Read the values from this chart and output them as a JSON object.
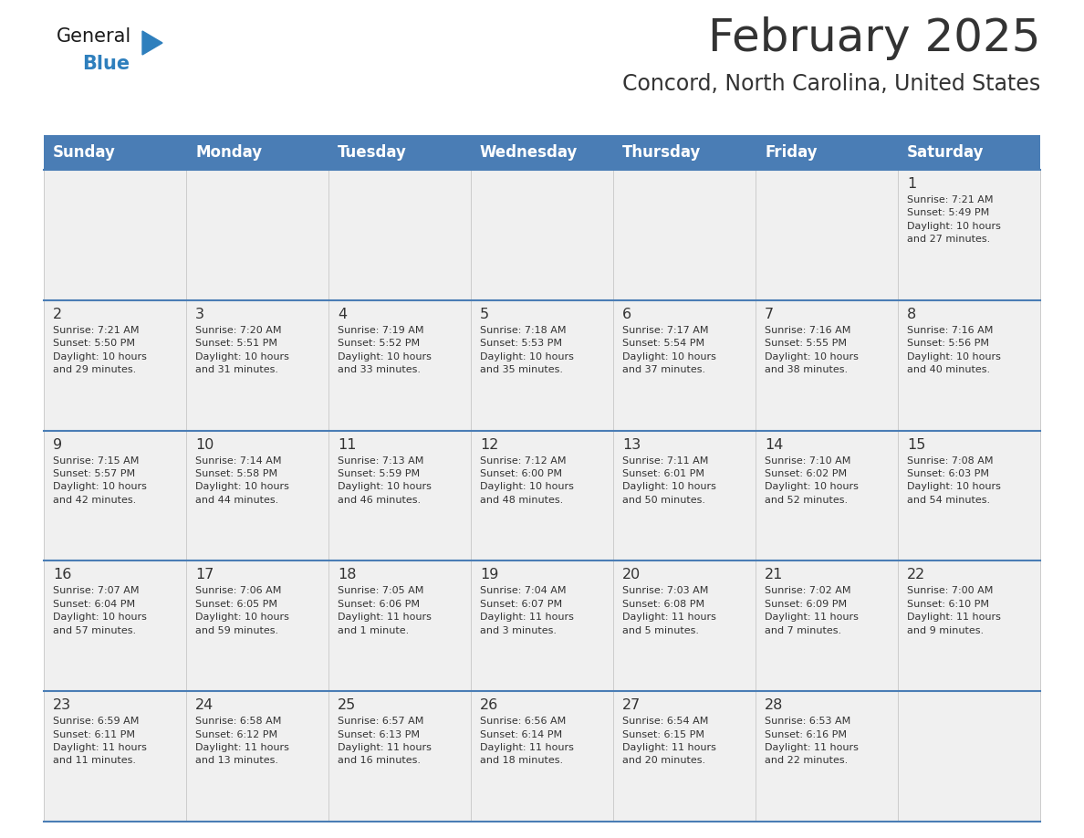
{
  "title": "February 2025",
  "subtitle": "Concord, North Carolina, United States",
  "header_bg_color": "#4a7db5",
  "header_text_color": "#ffffff",
  "cell_bg_light": "#f0f0f0",
  "cell_bg_white": "#ffffff",
  "separator_color": "#4a7db5",
  "border_color": "#4a7db5",
  "text_color": "#333333",
  "day_headers": [
    "Sunday",
    "Monday",
    "Tuesday",
    "Wednesday",
    "Thursday",
    "Friday",
    "Saturday"
  ],
  "calendar_data": [
    [
      {
        "day": null,
        "info": null
      },
      {
        "day": null,
        "info": null
      },
      {
        "day": null,
        "info": null
      },
      {
        "day": null,
        "info": null
      },
      {
        "day": null,
        "info": null
      },
      {
        "day": null,
        "info": null
      },
      {
        "day": 1,
        "info": "Sunrise: 7:21 AM\nSunset: 5:49 PM\nDaylight: 10 hours\nand 27 minutes."
      }
    ],
    [
      {
        "day": 2,
        "info": "Sunrise: 7:21 AM\nSunset: 5:50 PM\nDaylight: 10 hours\nand 29 minutes."
      },
      {
        "day": 3,
        "info": "Sunrise: 7:20 AM\nSunset: 5:51 PM\nDaylight: 10 hours\nand 31 minutes."
      },
      {
        "day": 4,
        "info": "Sunrise: 7:19 AM\nSunset: 5:52 PM\nDaylight: 10 hours\nand 33 minutes."
      },
      {
        "day": 5,
        "info": "Sunrise: 7:18 AM\nSunset: 5:53 PM\nDaylight: 10 hours\nand 35 minutes."
      },
      {
        "day": 6,
        "info": "Sunrise: 7:17 AM\nSunset: 5:54 PM\nDaylight: 10 hours\nand 37 minutes."
      },
      {
        "day": 7,
        "info": "Sunrise: 7:16 AM\nSunset: 5:55 PM\nDaylight: 10 hours\nand 38 minutes."
      },
      {
        "day": 8,
        "info": "Sunrise: 7:16 AM\nSunset: 5:56 PM\nDaylight: 10 hours\nand 40 minutes."
      }
    ],
    [
      {
        "day": 9,
        "info": "Sunrise: 7:15 AM\nSunset: 5:57 PM\nDaylight: 10 hours\nand 42 minutes."
      },
      {
        "day": 10,
        "info": "Sunrise: 7:14 AM\nSunset: 5:58 PM\nDaylight: 10 hours\nand 44 minutes."
      },
      {
        "day": 11,
        "info": "Sunrise: 7:13 AM\nSunset: 5:59 PM\nDaylight: 10 hours\nand 46 minutes."
      },
      {
        "day": 12,
        "info": "Sunrise: 7:12 AM\nSunset: 6:00 PM\nDaylight: 10 hours\nand 48 minutes."
      },
      {
        "day": 13,
        "info": "Sunrise: 7:11 AM\nSunset: 6:01 PM\nDaylight: 10 hours\nand 50 minutes."
      },
      {
        "day": 14,
        "info": "Sunrise: 7:10 AM\nSunset: 6:02 PM\nDaylight: 10 hours\nand 52 minutes."
      },
      {
        "day": 15,
        "info": "Sunrise: 7:08 AM\nSunset: 6:03 PM\nDaylight: 10 hours\nand 54 minutes."
      }
    ],
    [
      {
        "day": 16,
        "info": "Sunrise: 7:07 AM\nSunset: 6:04 PM\nDaylight: 10 hours\nand 57 minutes."
      },
      {
        "day": 17,
        "info": "Sunrise: 7:06 AM\nSunset: 6:05 PM\nDaylight: 10 hours\nand 59 minutes."
      },
      {
        "day": 18,
        "info": "Sunrise: 7:05 AM\nSunset: 6:06 PM\nDaylight: 11 hours\nand 1 minute."
      },
      {
        "day": 19,
        "info": "Sunrise: 7:04 AM\nSunset: 6:07 PM\nDaylight: 11 hours\nand 3 minutes."
      },
      {
        "day": 20,
        "info": "Sunrise: 7:03 AM\nSunset: 6:08 PM\nDaylight: 11 hours\nand 5 minutes."
      },
      {
        "day": 21,
        "info": "Sunrise: 7:02 AM\nSunset: 6:09 PM\nDaylight: 11 hours\nand 7 minutes."
      },
      {
        "day": 22,
        "info": "Sunrise: 7:00 AM\nSunset: 6:10 PM\nDaylight: 11 hours\nand 9 minutes."
      }
    ],
    [
      {
        "day": 23,
        "info": "Sunrise: 6:59 AM\nSunset: 6:11 PM\nDaylight: 11 hours\nand 11 minutes."
      },
      {
        "day": 24,
        "info": "Sunrise: 6:58 AM\nSunset: 6:12 PM\nDaylight: 11 hours\nand 13 minutes."
      },
      {
        "day": 25,
        "info": "Sunrise: 6:57 AM\nSunset: 6:13 PM\nDaylight: 11 hours\nand 16 minutes."
      },
      {
        "day": 26,
        "info": "Sunrise: 6:56 AM\nSunset: 6:14 PM\nDaylight: 11 hours\nand 18 minutes."
      },
      {
        "day": 27,
        "info": "Sunrise: 6:54 AM\nSunset: 6:15 PM\nDaylight: 11 hours\nand 20 minutes."
      },
      {
        "day": 28,
        "info": "Sunrise: 6:53 AM\nSunset: 6:16 PM\nDaylight: 11 hours\nand 22 minutes."
      },
      {
        "day": null,
        "info": null
      }
    ]
  ],
  "logo_general_color": "#1a1a1a",
  "logo_blue_color": "#2e7fbd",
  "logo_triangle_color": "#2e7fbd",
  "fig_width": 11.88,
  "fig_height": 9.18,
  "dpi": 100
}
